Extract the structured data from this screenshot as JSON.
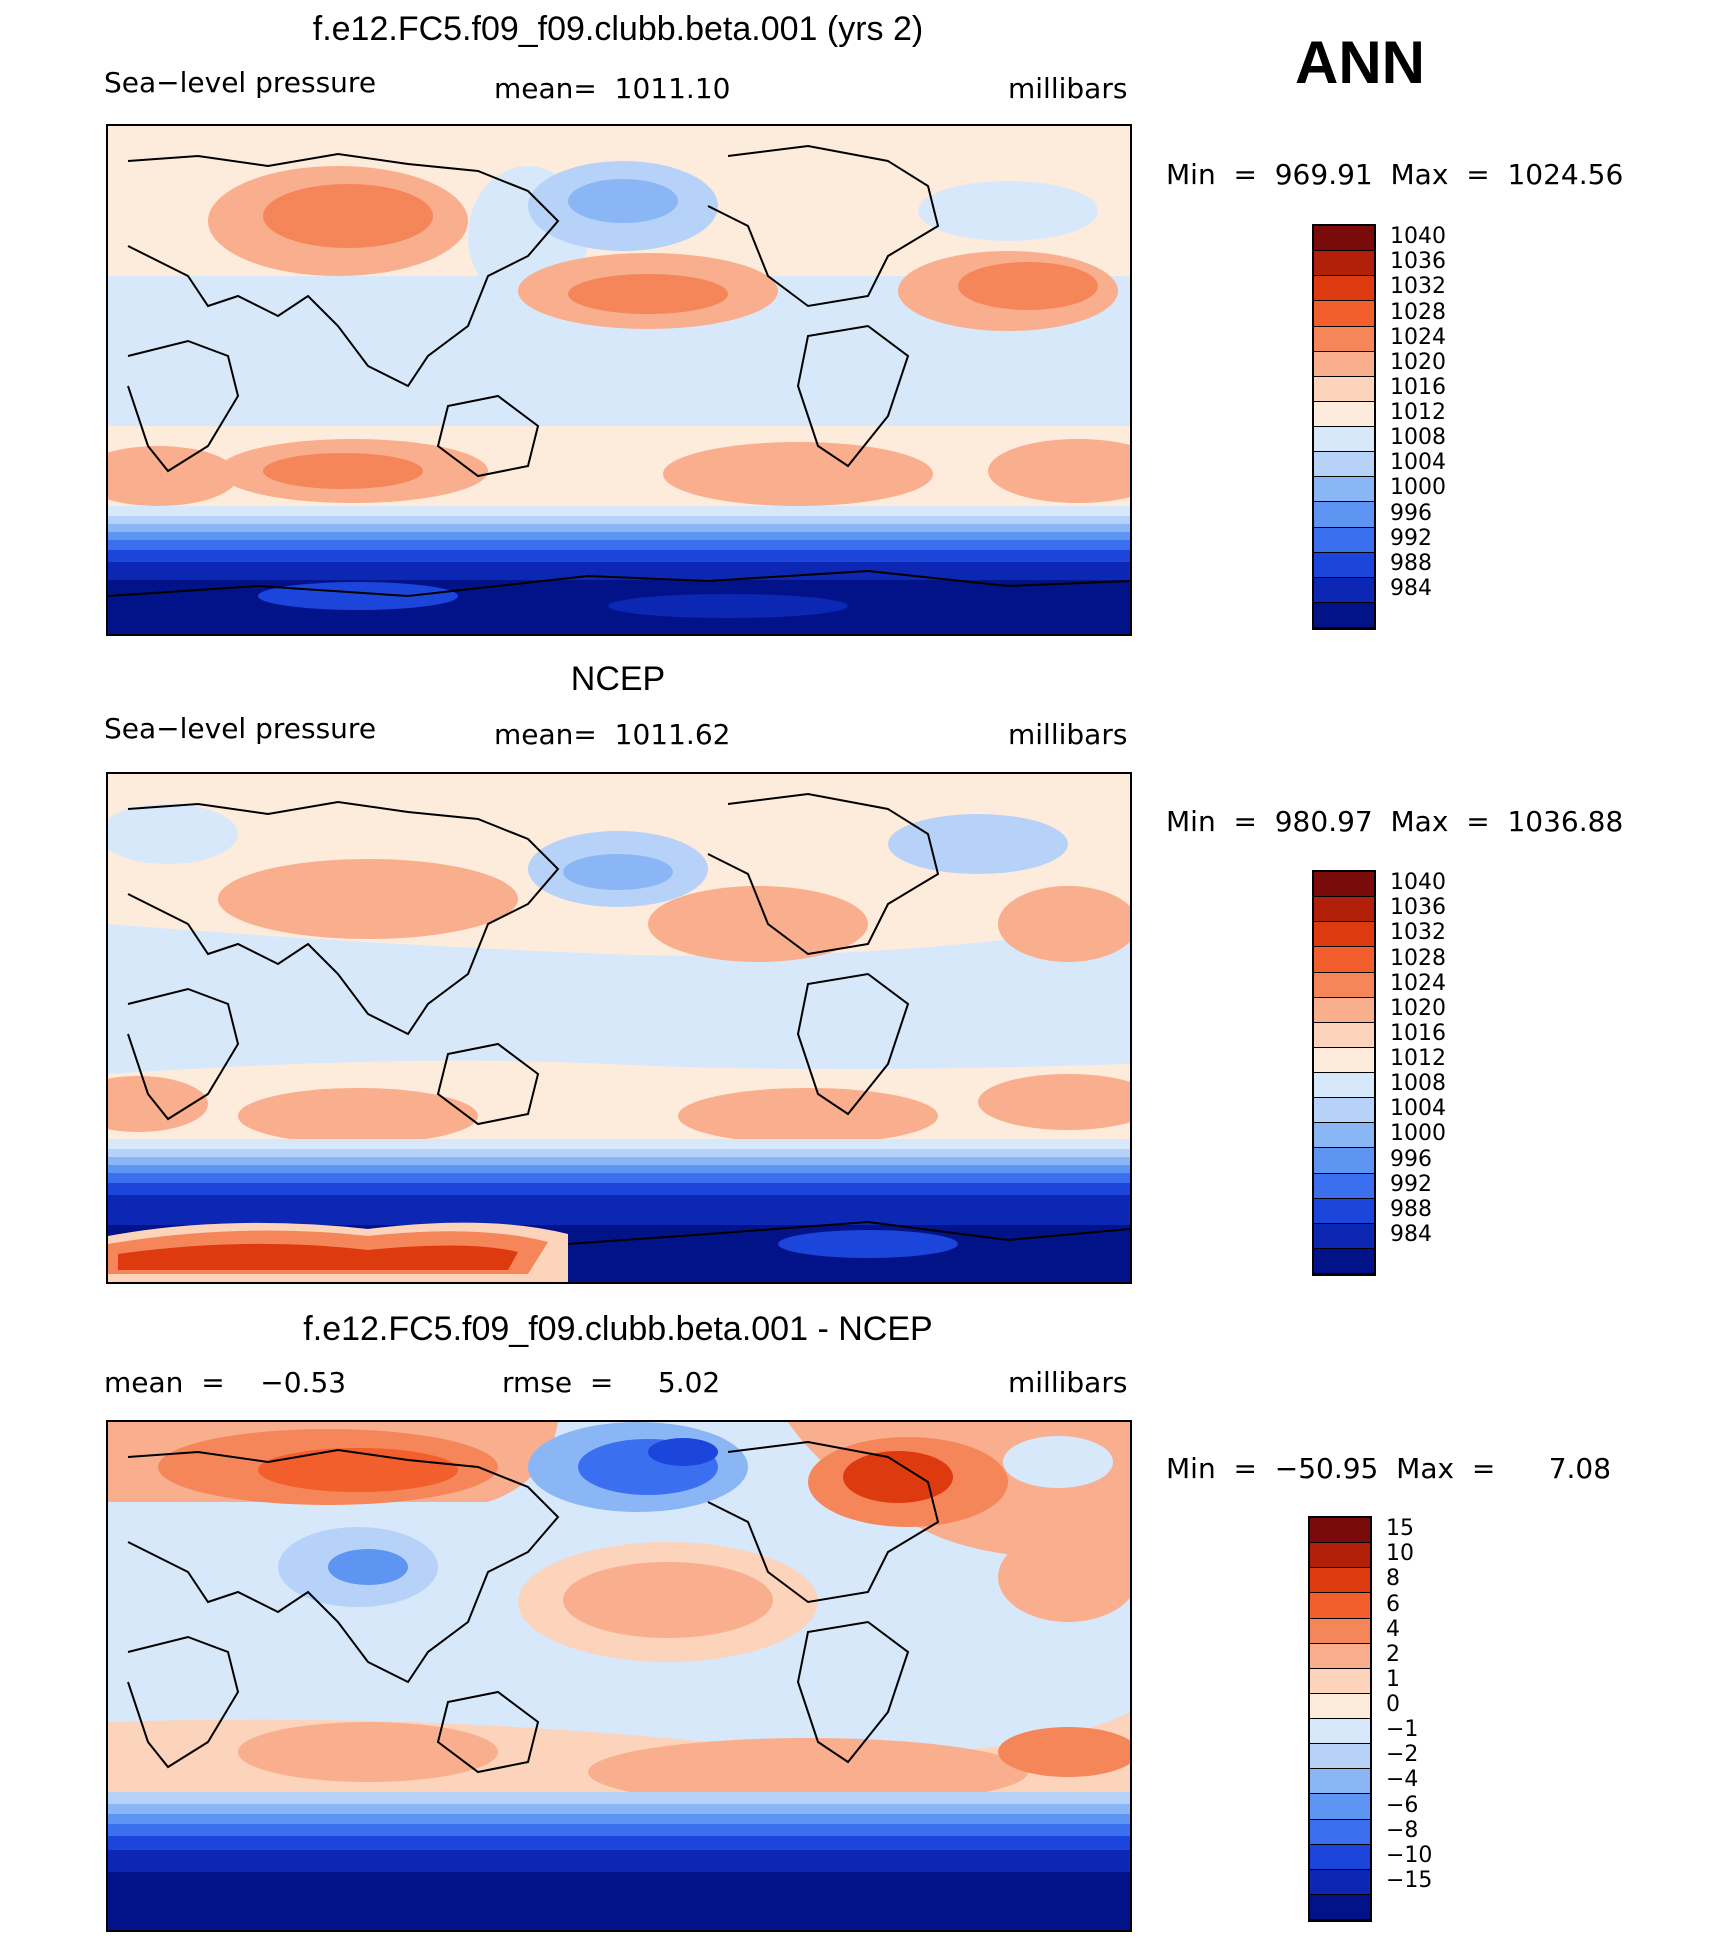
{
  "season": "ANN",
  "panels": [
    {
      "title": "f.e12.FC5.f09_f09.clubb.beta.001 (yrs 2)",
      "left_label": "Sea−level pressure",
      "center_label": "mean=  1011.10",
      "units": "millibars",
      "minmax": "Min  =  969.91  Max  =  1024.56",
      "map": "model"
    },
    {
      "title": "NCEP",
      "left_label": "Sea−level pressure",
      "center_label": "mean=  1011.62",
      "units": "millibars",
      "minmax": "Min  =  980.97  Max  =  1036.88",
      "map": "obs"
    },
    {
      "title": "f.e12.FC5.f09_f09.clubb.beta.001 - NCEP",
      "left_label": "mean  =    −0.53",
      "center_label": "rmse  =     5.02",
      "units": "millibars",
      "minmax": "Min  =  −50.95  Max  =      7.08",
      "map": "diff"
    }
  ],
  "colorbars": {
    "pressure": {
      "labels": [
        "1040",
        "1036",
        "1032",
        "1028",
        "1024",
        "1020",
        "1016",
        "1012",
        "1008",
        "1004",
        "1000",
        "996",
        "992",
        "988",
        "984"
      ],
      "colors": [
        "#7a0b0b",
        "#b3200a",
        "#dd3a10",
        "#f25e2c",
        "#f5865a",
        "#f9ae8d",
        "#fcd3bb",
        "#fdebdc",
        "#d8e8fb",
        "#b6d2f9",
        "#8ab6f6",
        "#5e94f2",
        "#3a6ff0",
        "#1b45db",
        "#0b27b3",
        "#02138a"
      ]
    },
    "difference": {
      "labels": [
        "15",
        "10",
        "8",
        "6",
        "4",
        "2",
        "1",
        "0",
        "−1",
        "−2",
        "−4",
        "−6",
        "−8",
        "−10",
        "−15"
      ],
      "colors": [
        "#7a0b0b",
        "#b3200a",
        "#dd3a10",
        "#f25e2c",
        "#f5865a",
        "#f9ae8d",
        "#fcd3bb",
        "#fdebdc",
        "#d8e8fb",
        "#b6d2f9",
        "#8ab6f6",
        "#5e94f2",
        "#3a6ff0",
        "#1b45db",
        "#0b27b3",
        "#02138a"
      ]
    }
  }
}
